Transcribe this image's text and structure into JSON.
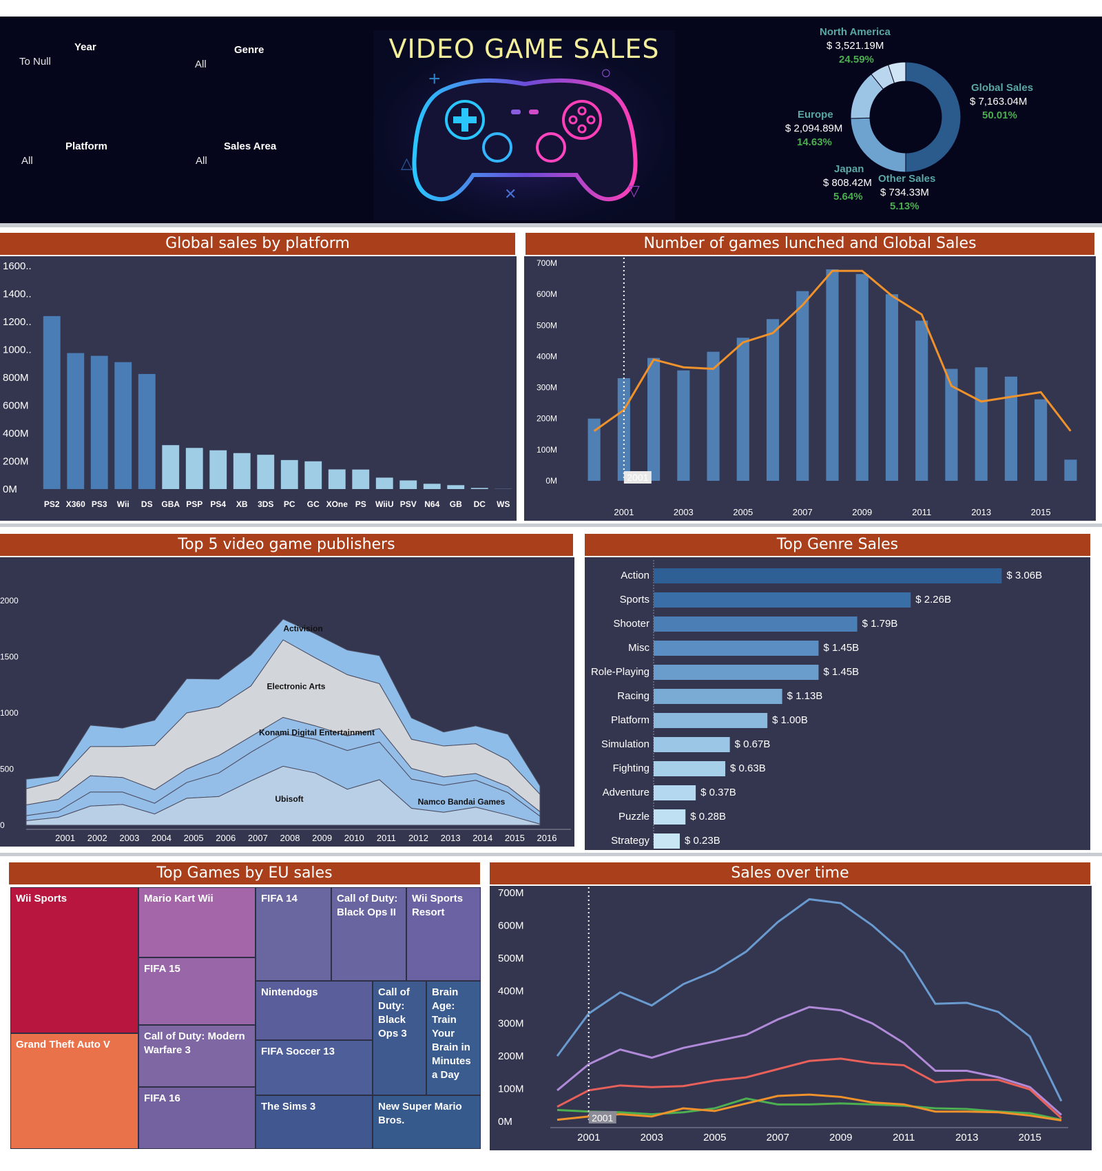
{
  "filters": {
    "year": {
      "title": "Year",
      "value": "To Null"
    },
    "genre": {
      "title": "Genre",
      "value": "All"
    },
    "platform": {
      "title": "Platform",
      "value": "All"
    },
    "sales_area": {
      "title": "Sales Area",
      "value": "All"
    }
  },
  "banner": {
    "title": "VIDEO GAME SALES"
  },
  "kpis": {
    "north_america": {
      "name": "North America",
      "value": "$ 3,521.19M",
      "pct": "24.59%"
    },
    "europe": {
      "name": "Europe",
      "value": "$ 2,094.89M",
      "pct": "14.63%"
    },
    "japan": {
      "name": "Japan",
      "value": "$ 808.42M",
      "pct": "5.64%"
    },
    "other": {
      "name": "Other Sales",
      "value": "$ 734.33M",
      "pct": "5.13%"
    },
    "global": {
      "name": "Global Sales",
      "value": "$ 7,163.04M",
      "pct": "50.01%"
    }
  },
  "headers": {
    "platform": "Global sales by platform",
    "games": "Number of games lunched and Global Sales",
    "publishers": "Top 5 video game publishers",
    "genre": "Top Genre Sales",
    "eu": "Top Games by EU sales",
    "time": "Sales over time"
  },
  "year_marker": "2001",
  "colors": {
    "band": "#05051c",
    "panel": "#343650",
    "header": "#a9401b",
    "bar_dark": "#4a7db5",
    "bar_light": "#9fcde6",
    "line_orange": "#f0922c",
    "accent_green": "#4bae4f",
    "accent_teal": "#5aa8a6"
  },
  "chart_data": [
    {
      "id": "donut",
      "type": "pie",
      "categories": [
        "Global Sales",
        "North America",
        "Europe",
        "Japan",
        "Other Sales"
      ],
      "values": [
        50.01,
        24.59,
        14.63,
        5.64,
        5.13
      ],
      "colors": [
        "#2b5b8c",
        "#6ea3d0",
        "#9cc4e4",
        "#b9d6ee",
        "#cfe4f5"
      ]
    },
    {
      "id": "platform",
      "type": "bar",
      "title": "Global sales by platform",
      "categories": [
        "PS2",
        "X360",
        "PS3",
        "Wii",
        "DS",
        "GBA",
        "PSP",
        "PS4",
        "XB",
        "3DS",
        "PC",
        "GC",
        "XOne",
        "PS",
        "WiiU",
        "PSV",
        "N64",
        "GB",
        "DC",
        "WS"
      ],
      "values": [
        1240,
        975,
        955,
        910,
        825,
        315,
        295,
        278,
        258,
        246,
        208,
        199,
        141,
        140,
        82,
        62,
        38,
        28,
        8,
        1
      ],
      "ytick_labels": [
        "0M",
        "200M",
        "400M",
        "600M",
        "800M",
        "1000..",
        "1200..",
        "1400..",
        "1600.."
      ],
      "yticks": [
        0,
        200,
        400,
        600,
        800,
        1000,
        1200,
        1400,
        1600
      ]
    },
    {
      "id": "games",
      "type": "bar",
      "title": "Number of games lunched and Global Sales",
      "x": [
        2000,
        2001,
        2002,
        2003,
        2004,
        2005,
        2006,
        2007,
        2008,
        2009,
        2010,
        2011,
        2012,
        2013,
        2014,
        2015,
        2016
      ],
      "bars": [
        200,
        330,
        395,
        355,
        415,
        460,
        520,
        610,
        680,
        665,
        600,
        515,
        360,
        365,
        335,
        262,
        68
      ],
      "line": [
        160,
        228,
        390,
        365,
        360,
        445,
        475,
        565,
        675,
        675,
        595,
        535,
        305,
        255,
        270,
        285,
        160
      ],
      "ylim": [
        0,
        700
      ],
      "yticks": [
        0,
        100,
        200,
        300,
        400,
        500,
        600,
        700
      ],
      "ytick_labels": [
        "0M",
        "100M",
        "200M",
        "300M",
        "400M",
        "500M",
        "600M",
        "700M"
      ],
      "xtick_labels": [
        "2001",
        "2003",
        "2005",
        "2007",
        "2009",
        "2011",
        "2013",
        "2015"
      ]
    },
    {
      "id": "publishers",
      "type": "area",
      "title": "Top 5 video game publishers",
      "x": [
        2000,
        2001,
        2002,
        2003,
        2004,
        2005,
        2006,
        2007,
        2008,
        2009,
        2010,
        2011,
        2012,
        2013,
        2014,
        2015,
        2016
      ],
      "xtick_labels": [
        "2001",
        "2002",
        "2003",
        "2004",
        "2005",
        "2006",
        "2007",
        "2008",
        "2009",
        "2010",
        "2011",
        "2012",
        "2013",
        "2014",
        "2015",
        "2016"
      ],
      "yticks": [
        0,
        500,
        1000,
        1500,
        2000
      ],
      "ytick_labels": [
        "0",
        "500",
        "1000",
        "1500",
        "2000"
      ],
      "series": [
        {
          "name": "Ubisoft",
          "values": [
            40,
            70,
            170,
            185,
            100,
            240,
            255,
            395,
            525,
            465,
            320,
            405,
            150,
            115,
            160,
            90,
            10
          ],
          "color": "#b9cfe6"
        },
        {
          "name": "Namco Bandai Games",
          "values": [
            45,
            55,
            125,
            110,
            95,
            140,
            210,
            255,
            290,
            300,
            345,
            335,
            260,
            240,
            240,
            200,
            70
          ],
          "color": "#94bde7"
        },
        {
          "name": "Konami Digital Entertainment",
          "values": [
            95,
            105,
            145,
            130,
            120,
            120,
            155,
            140,
            145,
            120,
            130,
            120,
            95,
            75,
            60,
            55,
            40
          ],
          "color": "#94bde7"
        },
        {
          "name": "Electronic Arts",
          "values": [
            145,
            165,
            260,
            275,
            395,
            500,
            435,
            450,
            690,
            605,
            545,
            400,
            260,
            275,
            265,
            235,
            155
          ],
          "color": "#d2d5da"
        },
        {
          "name": "Activision",
          "values": [
            85,
            45,
            190,
            165,
            225,
            305,
            245,
            275,
            185,
            215,
            220,
            250,
            190,
            125,
            160,
            230,
            75
          ],
          "color": "#8fbde9"
        }
      ]
    },
    {
      "id": "genre",
      "type": "bar",
      "title": "Top Genre Sales",
      "categories": [
        "Action",
        "Sports",
        "Shooter",
        "Misc",
        "Role-Playing",
        "Racing",
        "Platform",
        "Simulation",
        "Fighting",
        "Adventure",
        "Puzzle",
        "Strategy"
      ],
      "values": [
        3.06,
        2.26,
        1.79,
        1.45,
        1.45,
        1.13,
        1.0,
        0.67,
        0.63,
        0.37,
        0.28,
        0.23
      ],
      "labels": [
        "$ 3.06B",
        "$ 2.26B",
        "$ 1.79B",
        "$ 1.45B",
        "$ 1.45B",
        "$ 1.13B",
        "$ 1.00B",
        "$ 0.67B",
        "$ 0.63B",
        "$ 0.37B",
        "$ 0.28B",
        "$ 0.23B"
      ]
    },
    {
      "id": "eu",
      "type": "treemap",
      "title": "Top Games by EU sales",
      "tiles": [
        "Wii Sports",
        "Grand Theft Auto V",
        "Mario Kart Wii",
        "FIFA 15",
        "Call of Duty: Modern Warfare 3",
        "FIFA 16",
        "FIFA 14",
        "Call of Duty: Black Ops II",
        "Wii Sports Resort",
        "Nintendogs",
        "FIFA Soccer 13",
        "The Sims 3",
        "Call of Duty: Black Ops 3",
        "Brain Age: Train Your Brain in Minutes a Day",
        "New Super Mario Bros."
      ]
    },
    {
      "id": "time",
      "type": "line",
      "title": "Sales over time",
      "x": [
        2000,
        2001,
        2002,
        2003,
        2004,
        2005,
        2006,
        2007,
        2008,
        2009,
        2010,
        2011,
        2012,
        2013,
        2014,
        2015,
        2016
      ],
      "xtick_labels": [
        "2001",
        "2003",
        "2005",
        "2007",
        "2009",
        "2011",
        "2013",
        "2015"
      ],
      "yticks": [
        0,
        100,
        200,
        300,
        400,
        500,
        600,
        700
      ],
      "ytick_labels": [
        "0M",
        "100M",
        "200M",
        "300M",
        "400M",
        "500M",
        "600M",
        "700M"
      ],
      "ylim": [
        0,
        700
      ],
      "series": [
        {
          "values": [
            200,
            330,
            395,
            355,
            420,
            460,
            520,
            610,
            680,
            668,
            600,
            515,
            360,
            363,
            335,
            260,
            62
          ],
          "color": "#6a9bd0"
        },
        {
          "values": [
            95,
            175,
            220,
            195,
            225,
            245,
            265,
            312,
            350,
            340,
            300,
            240,
            155,
            155,
            135,
            105,
            20
          ],
          "color": "#b08ad8"
        },
        {
          "values": [
            45,
            95,
            110,
            105,
            108,
            125,
            135,
            160,
            185,
            192,
            178,
            172,
            120,
            127,
            127,
            98,
            10
          ],
          "color": "#e8605a"
        },
        {
          "values": [
            35,
            30,
            28,
            22,
            28,
            40,
            70,
            52,
            52,
            55,
            52,
            48,
            40,
            38,
            30,
            25,
            5
          ],
          "color": "#4caf50"
        },
        {
          "values": [
            5,
            15,
            22,
            15,
            40,
            32,
            55,
            78,
            82,
            75,
            58,
            52,
            30,
            30,
            28,
            18,
            3
          ],
          "color": "#f0922c"
        }
      ]
    }
  ]
}
